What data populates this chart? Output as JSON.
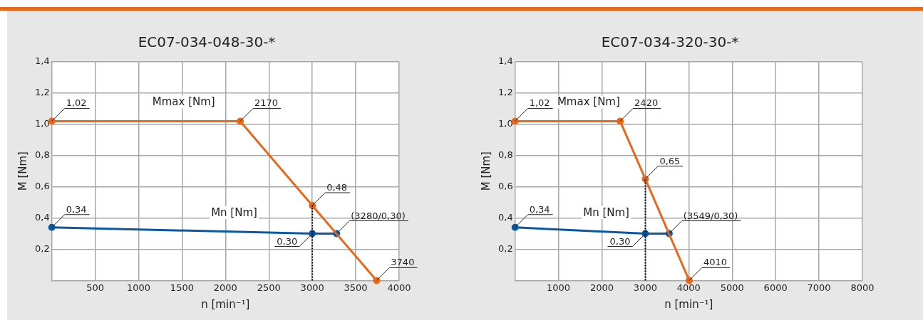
{
  "chart_data": [
    {
      "type": "line",
      "title": "EC07-034-048-30-*",
      "xlabel": "n [min⁻¹]",
      "ylabel": "M [Nm]",
      "xlim": [
        0,
        4000
      ],
      "xticks": [
        500,
        1000,
        1500,
        2000,
        2500,
        3000,
        3500,
        4000
      ],
      "ylim": [
        0,
        1.4
      ],
      "yticks": [
        {
          "value": 0.2,
          "label": "0,2"
        },
        {
          "value": 0.4,
          "label": "0,4"
        },
        {
          "value": 0.6,
          "label": "0,6"
        },
        {
          "value": 0.8,
          "label": "0,8"
        },
        {
          "value": 1.0,
          "label": "1,0"
        },
        {
          "value": 1.2,
          "label": "1,2"
        },
        {
          "value": 1.4,
          "label": "1,4"
        }
      ],
      "grid": true,
      "legend": false,
      "marker": "circle",
      "line_style": "solid",
      "series": [
        {
          "name": "Mmax [Nm]",
          "color": "#e8681a",
          "x": [
            0,
            2170,
            3000,
            3740
          ],
          "values": [
            1.02,
            1.02,
            0.48,
            0
          ],
          "value_labels": [
            "1,02",
            null,
            "0,48",
            null
          ]
        },
        {
          "name": "Mn [Nm]",
          "color": "#0a57a4",
          "x": [
            0,
            3000,
            3280
          ],
          "values": [
            0.34,
            0.3,
            0.3
          ],
          "value_labels": [
            "0,34",
            "0,30",
            "(3280/0,30)"
          ]
        }
      ],
      "annotations": [
        {
          "text": "2170",
          "x": 2170,
          "y": 1.02
        },
        {
          "text": "3740",
          "x": 3740,
          "y": 0
        }
      ],
      "ref_lines": [
        {
          "axis": "x",
          "value": 3000,
          "color": "#000000",
          "line_style": "dotted"
        }
      ]
    },
    {
      "type": "line",
      "title": "EC07-034-320-30-*",
      "xlabel": "n [min⁻¹]",
      "ylabel": "M [Nm]",
      "xlim": [
        0,
        8000
      ],
      "xticks": [
        1000,
        2000,
        3000,
        4000,
        5000,
        6000,
        7000,
        8000
      ],
      "ylim": [
        0,
        1.4
      ],
      "yticks": [
        {
          "value": 0.2,
          "label": "0,2"
        },
        {
          "value": 0.4,
          "label": "0,4"
        },
        {
          "value": 0.6,
          "label": "0,6"
        },
        {
          "value": 0.8,
          "label": "0,8"
        },
        {
          "value": 1.0,
          "label": "1,0"
        },
        {
          "value": 1.2,
          "label": "1,2"
        },
        {
          "value": 1.4,
          "label": "1,4"
        }
      ],
      "grid": true,
      "legend": false,
      "marker": "circle",
      "line_style": "solid",
      "series": [
        {
          "name": "Mmax [Nm]",
          "color": "#e8681a",
          "x": [
            0,
            2420,
            3000,
            4010
          ],
          "values": [
            1.02,
            1.02,
            0.65,
            0
          ],
          "value_labels": [
            "1,02",
            null,
            "0,65",
            null
          ]
        },
        {
          "name": "Mn [Nm]",
          "color": "#0a57a4",
          "x": [
            0,
            3000,
            3549
          ],
          "values": [
            0.34,
            0.3,
            0.3
          ],
          "value_labels": [
            "0,34",
            "0,30",
            "(3549/0,30)"
          ]
        }
      ],
      "annotations": [
        {
          "text": "2420",
          "x": 2420,
          "y": 1.02
        },
        {
          "text": "4010",
          "x": 4010,
          "y": 0
        }
      ],
      "ref_lines": [
        {
          "axis": "x",
          "value": 3000,
          "color": "#000000",
          "line_style": "dotted"
        }
      ]
    }
  ]
}
